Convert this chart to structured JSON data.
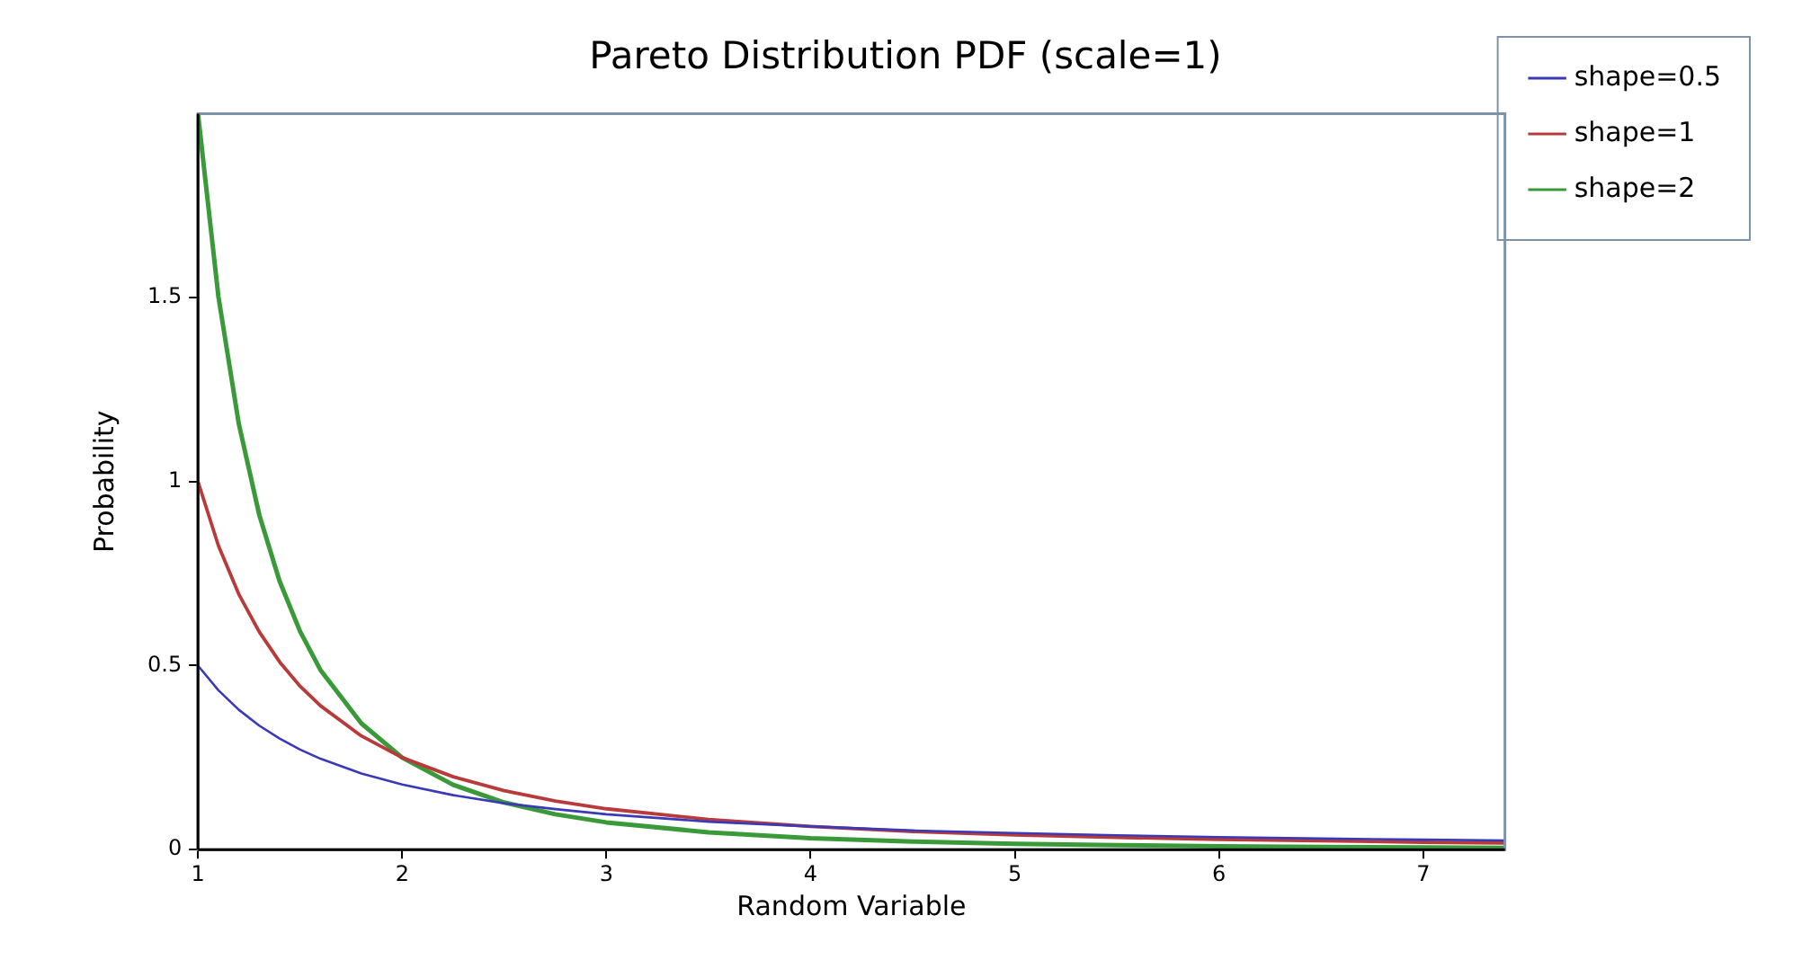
{
  "chart_data": {
    "type": "line",
    "title": "Pareto Distribution PDF (scale=1)",
    "xlabel": "Random Variable",
    "ylabel": "Probability",
    "x": [
      1,
      1.1,
      1.2,
      1.3,
      1.4,
      1.5,
      1.6,
      1.8,
      2,
      2.25,
      2.5,
      2.75,
      3,
      3.5,
      4,
      4.5,
      5,
      5.5,
      6,
      6.5,
      7,
      7.4
    ],
    "series": [
      {
        "name": "shape=0.5",
        "color": "#3a3ab8",
        "values": [
          0.5,
          0.433,
          0.38,
          0.337,
          0.302,
          0.272,
          0.247,
          0.207,
          0.177,
          0.148,
          0.126,
          0.11,
          0.096,
          0.076,
          0.063,
          0.052,
          0.045,
          0.039,
          0.034,
          0.03,
          0.027,
          0.025
        ]
      },
      {
        "name": "shape=1",
        "color": "#b83a3a",
        "values": [
          1,
          0.826,
          0.694,
          0.592,
          0.51,
          0.444,
          0.391,
          0.309,
          0.25,
          0.198,
          0.16,
          0.132,
          0.111,
          0.082,
          0.063,
          0.049,
          0.04,
          0.033,
          0.028,
          0.024,
          0.02,
          0.018
        ]
      },
      {
        "name": "shape=2",
        "color": "#3a9a3a",
        "values": [
          2,
          1.503,
          1.157,
          0.91,
          0.729,
          0.593,
          0.488,
          0.343,
          0.25,
          0.176,
          0.128,
          0.096,
          0.074,
          0.047,
          0.031,
          0.022,
          0.016,
          0.012,
          0.009,
          0.007,
          0.006,
          0.005
        ]
      }
    ],
    "xlim": [
      1,
      7.4
    ],
    "xticks": [
      1,
      2,
      3,
      4,
      5,
      6,
      7
    ],
    "ylim": [
      0,
      2
    ],
    "yticks": [
      0,
      0.5,
      1,
      1.5
    ],
    "legend": "right",
    "marker": "none",
    "line_style": "solid"
  }
}
